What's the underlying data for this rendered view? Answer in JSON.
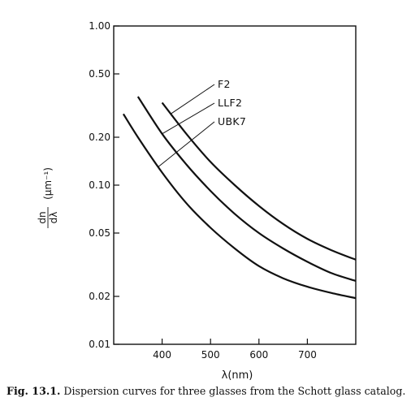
{
  "caption": {
    "figure_number": "Fig. 13.1.",
    "text": "Dispersion curves for three glasses from the Schott glass catalog."
  },
  "chart_data": {
    "type": "line",
    "title": "",
    "xlabel": "λ(nm)",
    "ylabel": {
      "numerator": "dn",
      "denominator": "dλ",
      "units": "(μm⁻¹)"
    },
    "xscale": "linear",
    "yscale": "log",
    "xlim": [
      300,
      800
    ],
    "ylim": [
      0.01,
      1.0
    ],
    "x_ticks": [
      400,
      500,
      600,
      700
    ],
    "x_tick_labels": [
      "400",
      "500",
      "600",
      "700"
    ],
    "y_ticks": [
      0.01,
      0.02,
      0.05,
      0.1,
      0.2,
      0.5,
      1.0
    ],
    "y_tick_labels": [
      "0.01",
      "0.02",
      "0.05",
      "0.10",
      "0.20",
      "0.50",
      "1.00"
    ],
    "grid": false,
    "legend": "none",
    "line_color": "#111111",
    "series": [
      {
        "name": "F2",
        "x": [
          400,
          450,
          500,
          550,
          600,
          650,
          700,
          750,
          800
        ],
        "y": [
          0.33,
          0.21,
          0.14,
          0.1,
          0.074,
          0.057,
          0.046,
          0.039,
          0.034
        ]
      },
      {
        "name": "LLF2",
        "x": [
          350,
          400,
          450,
          500,
          550,
          600,
          650,
          700,
          750,
          800
        ],
        "y": [
          0.36,
          0.21,
          0.135,
          0.092,
          0.066,
          0.05,
          0.04,
          0.033,
          0.028,
          0.025
        ]
      },
      {
        "name": "UBK7",
        "x": [
          320,
          350,
          400,
          450,
          500,
          550,
          600,
          650,
          700,
          750,
          800
        ],
        "y": [
          0.28,
          0.2,
          0.12,
          0.077,
          0.054,
          0.04,
          0.031,
          0.026,
          0.023,
          0.021,
          0.0195
        ]
      }
    ],
    "annotations": [
      {
        "label": "F2",
        "series": "F2",
        "at_x": 418
      },
      {
        "label": "LLF2",
        "series": "LLF2",
        "at_x": 400
      },
      {
        "label": "UBK7",
        "series": "UBK7",
        "at_x": 392
      }
    ]
  }
}
